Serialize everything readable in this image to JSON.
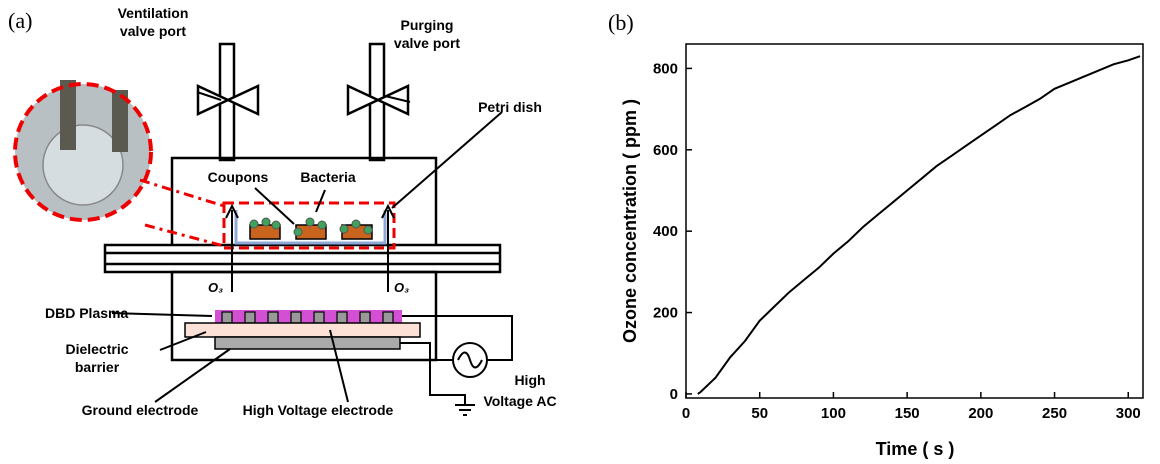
{
  "panel_a": {
    "label": "(a)",
    "ventilation_valve_port": [
      "Ventilation",
      "valve port"
    ],
    "purging_valve_port": [
      "Purging",
      "valve port"
    ],
    "petri_dish": "Petri dish",
    "coupons": "Coupons",
    "bacteria": "Bacteria",
    "ozone_left": "O₃",
    "ozone_right": "O₃",
    "dbd_plasma": "DBD Plasma",
    "dielectric_barrier": [
      "Dielectric",
      "barrier"
    ],
    "ground_electrode": "Ground electrode",
    "high_voltage_electrode": "High Voltage electrode",
    "high_voltage_ac": [
      "High",
      "Voltage AC"
    ]
  },
  "chart_data": {
    "type": "line",
    "panel_label": "(b)",
    "x_label": "Time ( s )",
    "y_label": "Ozone concentration ( ppm )",
    "x": [
      8,
      10,
      20,
      30,
      40,
      50,
      60,
      70,
      80,
      90,
      100,
      110,
      120,
      130,
      140,
      150,
      160,
      170,
      180,
      190,
      200,
      210,
      220,
      230,
      240,
      250,
      260,
      270,
      280,
      290,
      300,
      308
    ],
    "values": [
      0,
      5,
      40,
      90,
      130,
      180,
      215,
      250,
      280,
      310,
      345,
      375,
      410,
      440,
      470,
      500,
      530,
      560,
      585,
      610,
      635,
      660,
      685,
      705,
      725,
      750,
      765,
      780,
      795,
      810,
      820,
      830
    ],
    "color": "#000000",
    "xlim": [
      0,
      310
    ],
    "ylim": [
      -10,
      860
    ],
    "xticks": [
      0,
      50,
      100,
      150,
      200,
      250,
      300
    ],
    "yticks": [
      0,
      200,
      400,
      600,
      800
    ]
  }
}
